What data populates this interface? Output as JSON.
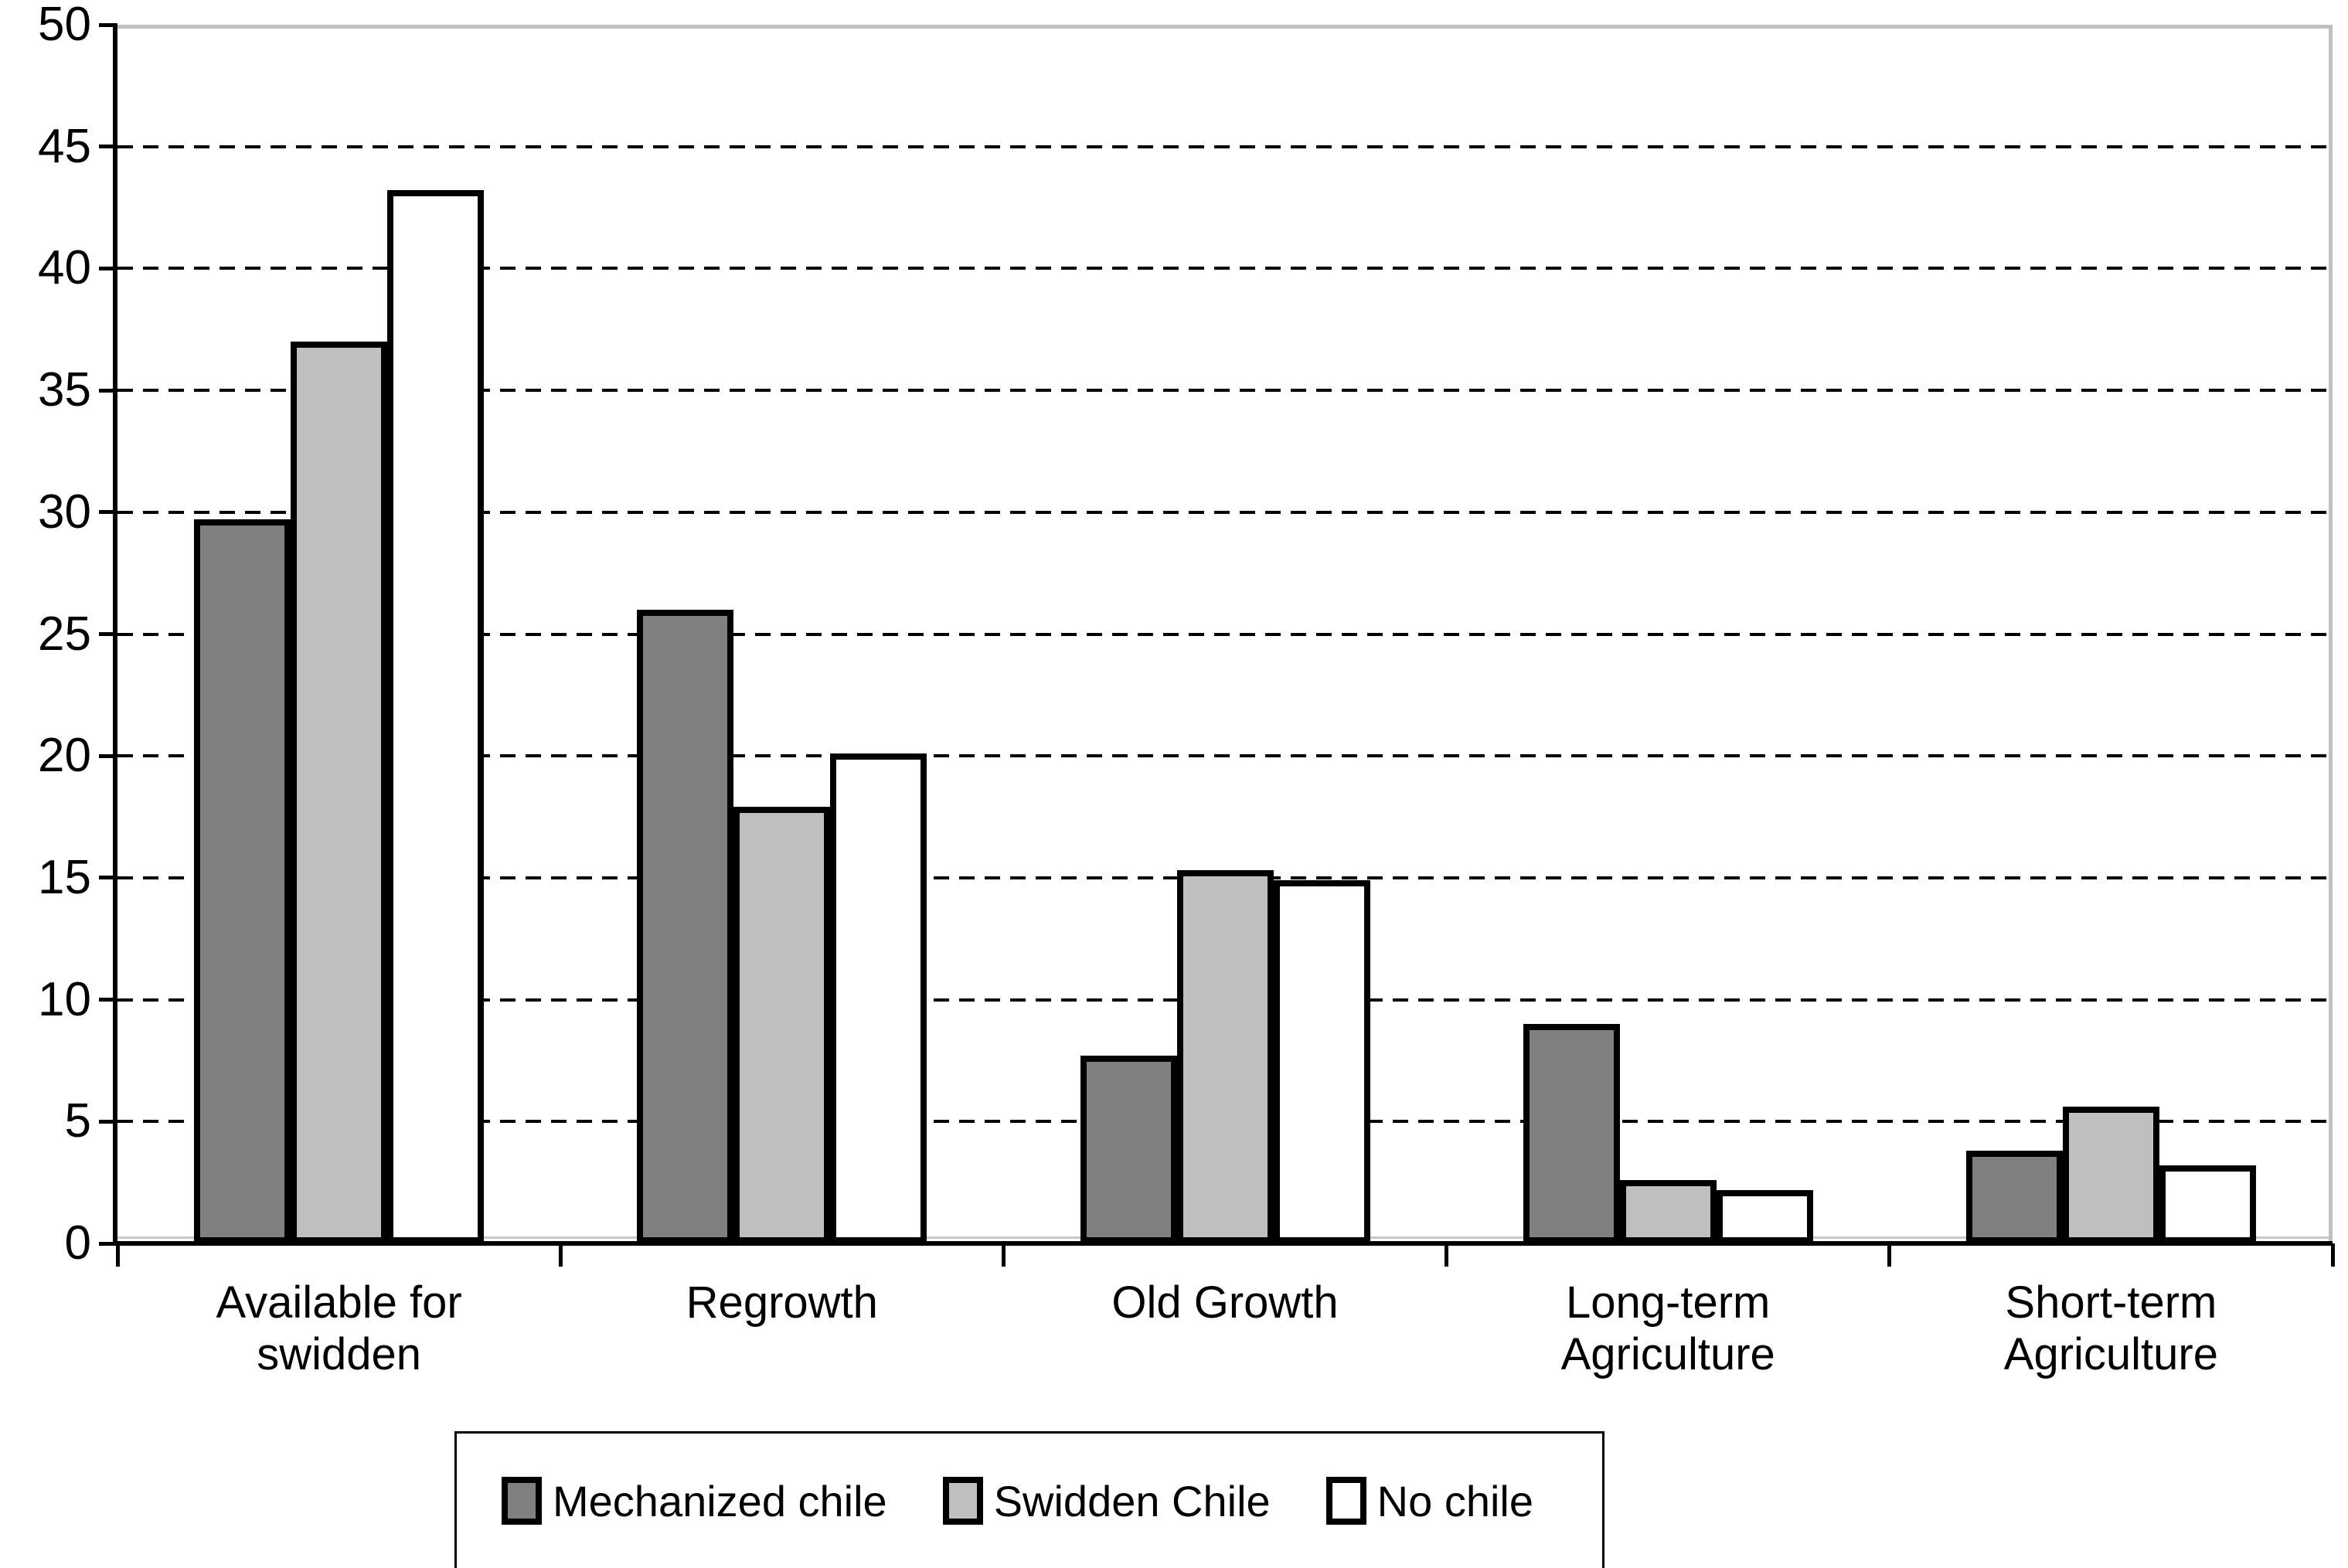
{
  "figure": {
    "background": "#ffffff"
  },
  "chart_data": {
    "type": "bar",
    "title": "",
    "xlabel": "",
    "ylabel": "",
    "categories": [
      "Available for swidden",
      "Regrowth",
      "Old Growth",
      "Long-term Agriculture",
      "Short-term Agriculture"
    ],
    "category_label_lines": [
      [
        "Available for",
        "swidden"
      ],
      [
        "Regrowth"
      ],
      [
        "Old Growth"
      ],
      [
        "Long-term",
        "Agriculture"
      ],
      [
        "Short-term",
        "Agriculture"
      ]
    ],
    "series": [
      {
        "name": "Mechanized chile",
        "color": "#808080",
        "values": [
          29.7,
          26.0,
          7.7,
          9.0,
          3.8
        ]
      },
      {
        "name": "Swidden Chile",
        "color": "#c0c0c0",
        "values": [
          37.0,
          17.9,
          15.3,
          2.6,
          5.6
        ]
      },
      {
        "name": "No chile",
        "color": "#ffffff",
        "values": [
          43.2,
          20.1,
          14.9,
          2.2,
          3.2
        ]
      }
    ],
    "ylim": [
      0,
      50
    ],
    "yticks": [
      0,
      5,
      10,
      15,
      20,
      25,
      30,
      35,
      40,
      45,
      50
    ],
    "grid": "horizontal-dashed",
    "legend_position": "bottom",
    "legend_labels": [
      "Mechanized chile",
      "Swidden Chile",
      "No chile"
    ]
  },
  "styles": {
    "bar_border_color": "#000000",
    "grid_color": "#000000",
    "axis_color": "#000000",
    "plot_border_color": "#c0c0c0",
    "text_color": "#000000"
  }
}
